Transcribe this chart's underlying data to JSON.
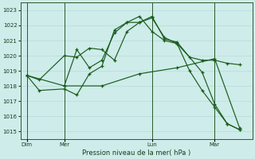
{
  "bg_color": "#ceecea",
  "grid_color": "#b8dbd8",
  "line_color": "#1a5c1a",
  "xlabel": "Pression niveau de la mer( hPa )",
  "ylim": [
    1014.5,
    1023.5
  ],
  "yticks": [
    1015,
    1016,
    1017,
    1018,
    1019,
    1020,
    1021,
    1022,
    1023
  ],
  "xtick_labels": [
    "Dim",
    "Mer",
    "Lun",
    "Mar"
  ],
  "xtick_positions": [
    0,
    3,
    10,
    15
  ],
  "vline_positions": [
    0,
    3,
    10,
    15
  ],
  "xlim": [
    -0.5,
    18
  ],
  "lines": [
    {
      "x": [
        0,
        1,
        3,
        4,
        5,
        6,
        7,
        8,
        9,
        10,
        11,
        12,
        13,
        14,
        15,
        16,
        17
      ],
      "y": [
        1018.7,
        1018.4,
        1020.0,
        1019.9,
        1020.5,
        1020.4,
        1019.7,
        1021.6,
        1022.2,
        1022.5,
        1021.2,
        1020.8,
        1019.9,
        1019.7,
        1019.7,
        1019.5,
        1019.4
      ]
    },
    {
      "x": [
        0,
        1,
        3,
        4,
        5,
        6,
        7,
        8,
        9,
        10,
        11,
        12,
        14,
        15,
        16,
        17
      ],
      "y": [
        1018.7,
        1017.7,
        1017.8,
        1017.4,
        1018.8,
        1019.3,
        1021.7,
        1022.2,
        1022.2,
        1022.6,
        1021.1,
        1020.9,
        1018.9,
        1016.8,
        1015.5,
        1015.1
      ]
    },
    {
      "x": [
        3,
        4,
        5,
        6,
        7,
        8,
        9,
        10,
        11,
        12,
        13,
        14,
        15,
        16,
        17
      ],
      "y": [
        1018.0,
        1020.4,
        1019.2,
        1019.7,
        1021.5,
        1022.2,
        1022.6,
        1021.6,
        1021.0,
        1020.8,
        1019.0,
        1017.7,
        1016.6,
        1015.5,
        1015.1
      ]
    },
    {
      "x": [
        0,
        3,
        6,
        9,
        12,
        15,
        17
      ],
      "y": [
        1018.7,
        1018.0,
        1018.0,
        1018.8,
        1019.2,
        1019.8,
        1015.2
      ]
    }
  ]
}
